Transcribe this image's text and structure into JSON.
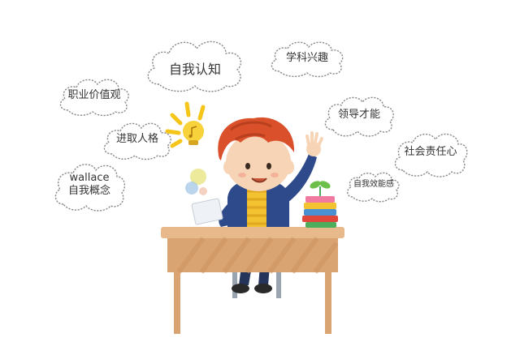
{
  "clouds": {
    "self_cognition": "自我认知",
    "subject_interest": "学科兴趣",
    "career_values": "职业价值观",
    "leadership": "领导才能",
    "enterprising_personality": "进取人格",
    "social_responsibility": "社会责任心",
    "self_concept_author": "wallace",
    "self_concept": "自我概念",
    "self_efficacy": "自我效能感"
  },
  "illustration": {
    "subject": "boy-at-desk-raising-hand",
    "icons": [
      "lightbulb-icon",
      "music-note-icon",
      "plant-sprout-icon"
    ]
  },
  "colors": {
    "hair": "#d9502a",
    "desk_top": "#e8b98a",
    "desk_body": "#d9a372",
    "jacket": "#2e4a8a",
    "shirt": "#f2c230",
    "bulb": "#f5c518"
  }
}
